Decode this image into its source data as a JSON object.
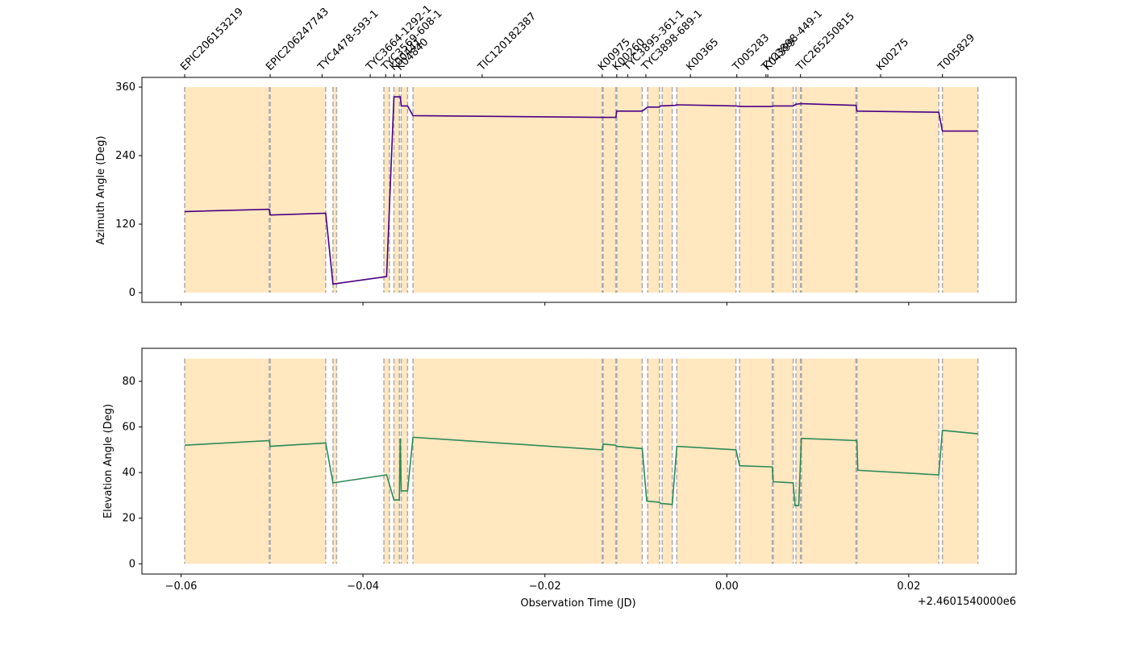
{
  "chart_data": [
    {
      "type": "line",
      "name_panel": "azimuth",
      "ylabel": "Azimuth Angle (Deg)",
      "xlabel": "",
      "ylim": [
        -17,
        377
      ],
      "yticks": [
        0,
        120,
        240,
        360
      ],
      "series": [
        {
          "color": "#4b0082",
          "points": [
            [
              -0.0596,
              142
            ],
            [
              -0.0503,
              146
            ],
            [
              -0.0502,
              136
            ],
            [
              -0.0441,
              139
            ],
            [
              -0.0433,
              15
            ],
            [
              -0.0374,
              28
            ],
            [
              -0.0366,
              343
            ],
            [
              -0.0359,
              343
            ],
            [
              -0.0358,
              327
            ],
            [
              -0.0351,
              327
            ],
            [
              -0.0345,
              310
            ],
            [
              -0.0137,
              307
            ],
            [
              -0.0122,
              307
            ],
            [
              -0.0121,
              318
            ],
            [
              -0.0093,
              318
            ],
            [
              -0.0087,
              325
            ],
            [
              -0.0074,
              325
            ],
            [
              -0.0073,
              327
            ],
            [
              -0.0057,
              328
            ],
            [
              -0.0055,
              329
            ],
            [
              0.001,
              327
            ],
            [
              0.0014,
              326
            ],
            [
              0.005,
              326
            ],
            [
              0.0051,
              327
            ],
            [
              0.0073,
              327
            ],
            [
              0.0076,
              330
            ],
            [
              0.0081,
              331
            ],
            [
              0.0142,
              328
            ],
            [
              0.0143,
              318
            ],
            [
              0.0233,
              316
            ],
            [
              0.0237,
              283
            ],
            [
              0.0276,
              283
            ]
          ]
        }
      ]
    },
    {
      "type": "line",
      "name_panel": "elevation",
      "ylabel": "Elevation Angle (Deg)",
      "xlabel": "Observation Time (JD)",
      "x_offset_label": "+2.4601540000e6",
      "xlim": [
        -0.0643,
        0.0318
      ],
      "xticks": [
        -0.06,
        -0.04,
        -0.02,
        0.0,
        0.02
      ],
      "xtick_labels": [
        "−0.06",
        "−0.04",
        "−0.02",
        "0.00",
        "0.02"
      ],
      "ylim": [
        -4.5,
        94.5
      ],
      "yticks": [
        0,
        20,
        40,
        60,
        80
      ],
      "series": [
        {
          "color": "#2e8b57",
          "points": [
            [
              -0.0596,
              52
            ],
            [
              -0.0503,
              54
            ],
            [
              -0.0502,
              51.5
            ],
            [
              -0.0441,
              53
            ],
            [
              -0.0433,
              35.5
            ],
            [
              -0.0374,
              39
            ],
            [
              -0.0366,
              28
            ],
            [
              -0.036,
              28
            ],
            [
              -0.0359,
              55
            ],
            [
              -0.0358,
              32
            ],
            [
              -0.0351,
              32
            ],
            [
              -0.0345,
              55.5
            ],
            [
              -0.0137,
              50
            ],
            [
              -0.0136,
              52.5
            ],
            [
              -0.0122,
              52
            ],
            [
              -0.0121,
              51.5
            ],
            [
              -0.0093,
              50.5
            ],
            [
              -0.0088,
              27.5
            ],
            [
              -0.0074,
              27
            ],
            [
              -0.0073,
              26.5
            ],
            [
              -0.006,
              26
            ],
            [
              -0.0055,
              51.5
            ],
            [
              0.001,
              50
            ],
            [
              0.0014,
              43
            ],
            [
              0.005,
              42.5
            ],
            [
              0.0051,
              36
            ],
            [
              0.0073,
              35.5
            ],
            [
              0.0075,
              25.5
            ],
            [
              0.0079,
              25.5
            ],
            [
              0.0082,
              55
            ],
            [
              0.0143,
              54
            ],
            [
              0.0144,
              41
            ],
            [
              0.0233,
              39
            ],
            [
              0.0237,
              58.5
            ],
            [
              0.0276,
              57
            ]
          ]
        }
      ]
    }
  ],
  "shaded_ranges": [
    [
      -0.0596,
      -0.0503
    ],
    [
      -0.0502,
      -0.0441
    ],
    [
      -0.0433,
      -0.0429
    ],
    [
      -0.0377,
      -0.0371
    ],
    [
      -0.0366,
      -0.036
    ],
    [
      -0.0358,
      -0.0351
    ],
    [
      -0.0345,
      -0.0137
    ],
    [
      -0.0136,
      -0.0122
    ],
    [
      -0.0121,
      -0.0093
    ],
    [
      -0.0087,
      -0.0074
    ],
    [
      -0.0071,
      -0.006
    ],
    [
      -0.0055,
      0.001
    ],
    [
      0.0014,
      0.005
    ],
    [
      0.0051,
      0.0073
    ],
    [
      0.0076,
      0.0081
    ],
    [
      0.0082,
      0.0142
    ],
    [
      0.0143,
      0.0233
    ],
    [
      0.0237,
      0.0276
    ]
  ],
  "shade_color": "#ffe7c0",
  "dash_color": "#aaaaaa",
  "target_labels": [
    {
      "text": "EPIC206153219",
      "x": -0.0596
    },
    {
      "text": "EPIC206247743",
      "x": -0.0502
    },
    {
      "text": "TYC4478-593-1",
      "x": -0.0445
    },
    {
      "text": "TYC3664-1292-1",
      "x": -0.0392
    },
    {
      "text": "TYC3569-608-1",
      "x": -0.0375
    },
    {
      "text": "K00441",
      "x": -0.0366
    },
    {
      "text": "K04840",
      "x": -0.0359
    },
    {
      "text": "TIC120182387",
      "x": -0.0269
    },
    {
      "text": "K00975",
      "x": -0.0137
    },
    {
      "text": "K00260",
      "x": -0.0121
    },
    {
      "text": "TYC3895-361-1",
      "x": -0.0109
    },
    {
      "text": "TYC3898-689-1",
      "x": -0.0089
    },
    {
      "text": "K00365",
      "x": -0.004
    },
    {
      "text": "T005283",
      "x": 0.0011
    },
    {
      "text": "TYC3898-449-1",
      "x": 0.0043
    },
    {
      "text": "K04399",
      "x": 0.0045
    },
    {
      "text": "TIC265250815",
      "x": 0.0081
    },
    {
      "text": "K00275",
      "x": 0.0169
    },
    {
      "text": "T005829",
      "x": 0.0237
    }
  ]
}
